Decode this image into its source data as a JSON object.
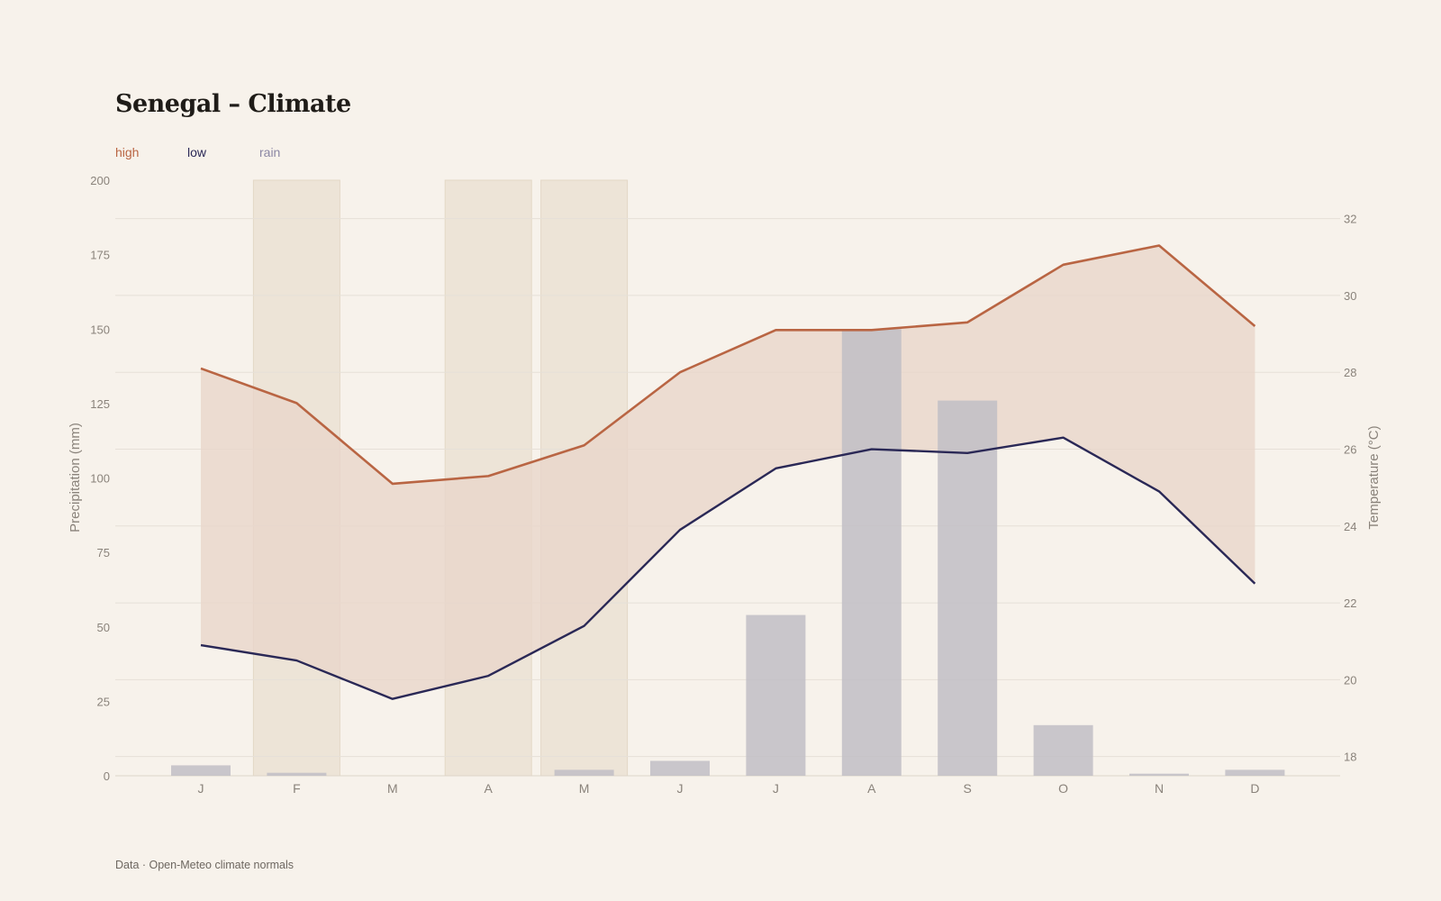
{
  "title": "Senegal – Climate",
  "legend": {
    "high": "high",
    "low": "low",
    "rain": "rain"
  },
  "source": "Data · Open-Meteo climate normals",
  "colors": {
    "background": "#f7f2eb",
    "high": "#b96543",
    "low": "#2a2856",
    "rain_bar": "#c1bec6",
    "range_fill": "#e9d6ca",
    "highlight": "#ede4d7",
    "grid": "#e6e0d8"
  },
  "chart_data": {
    "type": "bar",
    "categories": [
      "J",
      "F",
      "M",
      "A",
      "M",
      "J",
      "J",
      "A",
      "S",
      "O",
      "N",
      "D"
    ],
    "highlighted_months": [
      1,
      3,
      4
    ],
    "series": [
      {
        "name": "rain",
        "axis": "left",
        "type": "bar",
        "values": [
          3.5,
          1,
          0,
          0,
          2,
          5,
          54,
          150,
          126,
          17,
          0.7,
          2
        ]
      },
      {
        "name": "high",
        "axis": "right",
        "type": "line",
        "values": [
          28.1,
          27.2,
          25.1,
          25.3,
          26.1,
          28.0,
          29.1,
          29.1,
          29.3,
          30.8,
          31.3,
          29.2
        ]
      },
      {
        "name": "low",
        "axis": "right",
        "type": "line",
        "values": [
          20.9,
          20.5,
          19.5,
          20.1,
          21.4,
          23.9,
          25.5,
          26.0,
          25.9,
          26.3,
          24.9,
          22.5
        ]
      }
    ],
    "ylabel": "Precipitation (mm)",
    "y2label": "Temperature (°C)",
    "ylim": [
      0,
      200
    ],
    "y2lim": [
      17.5,
      33.0
    ],
    "yticks": [
      0,
      25,
      50,
      75,
      100,
      125,
      150,
      175,
      200
    ],
    "y2ticks": [
      18,
      20,
      22,
      24,
      26,
      28,
      30,
      32
    ],
    "grid": true
  }
}
